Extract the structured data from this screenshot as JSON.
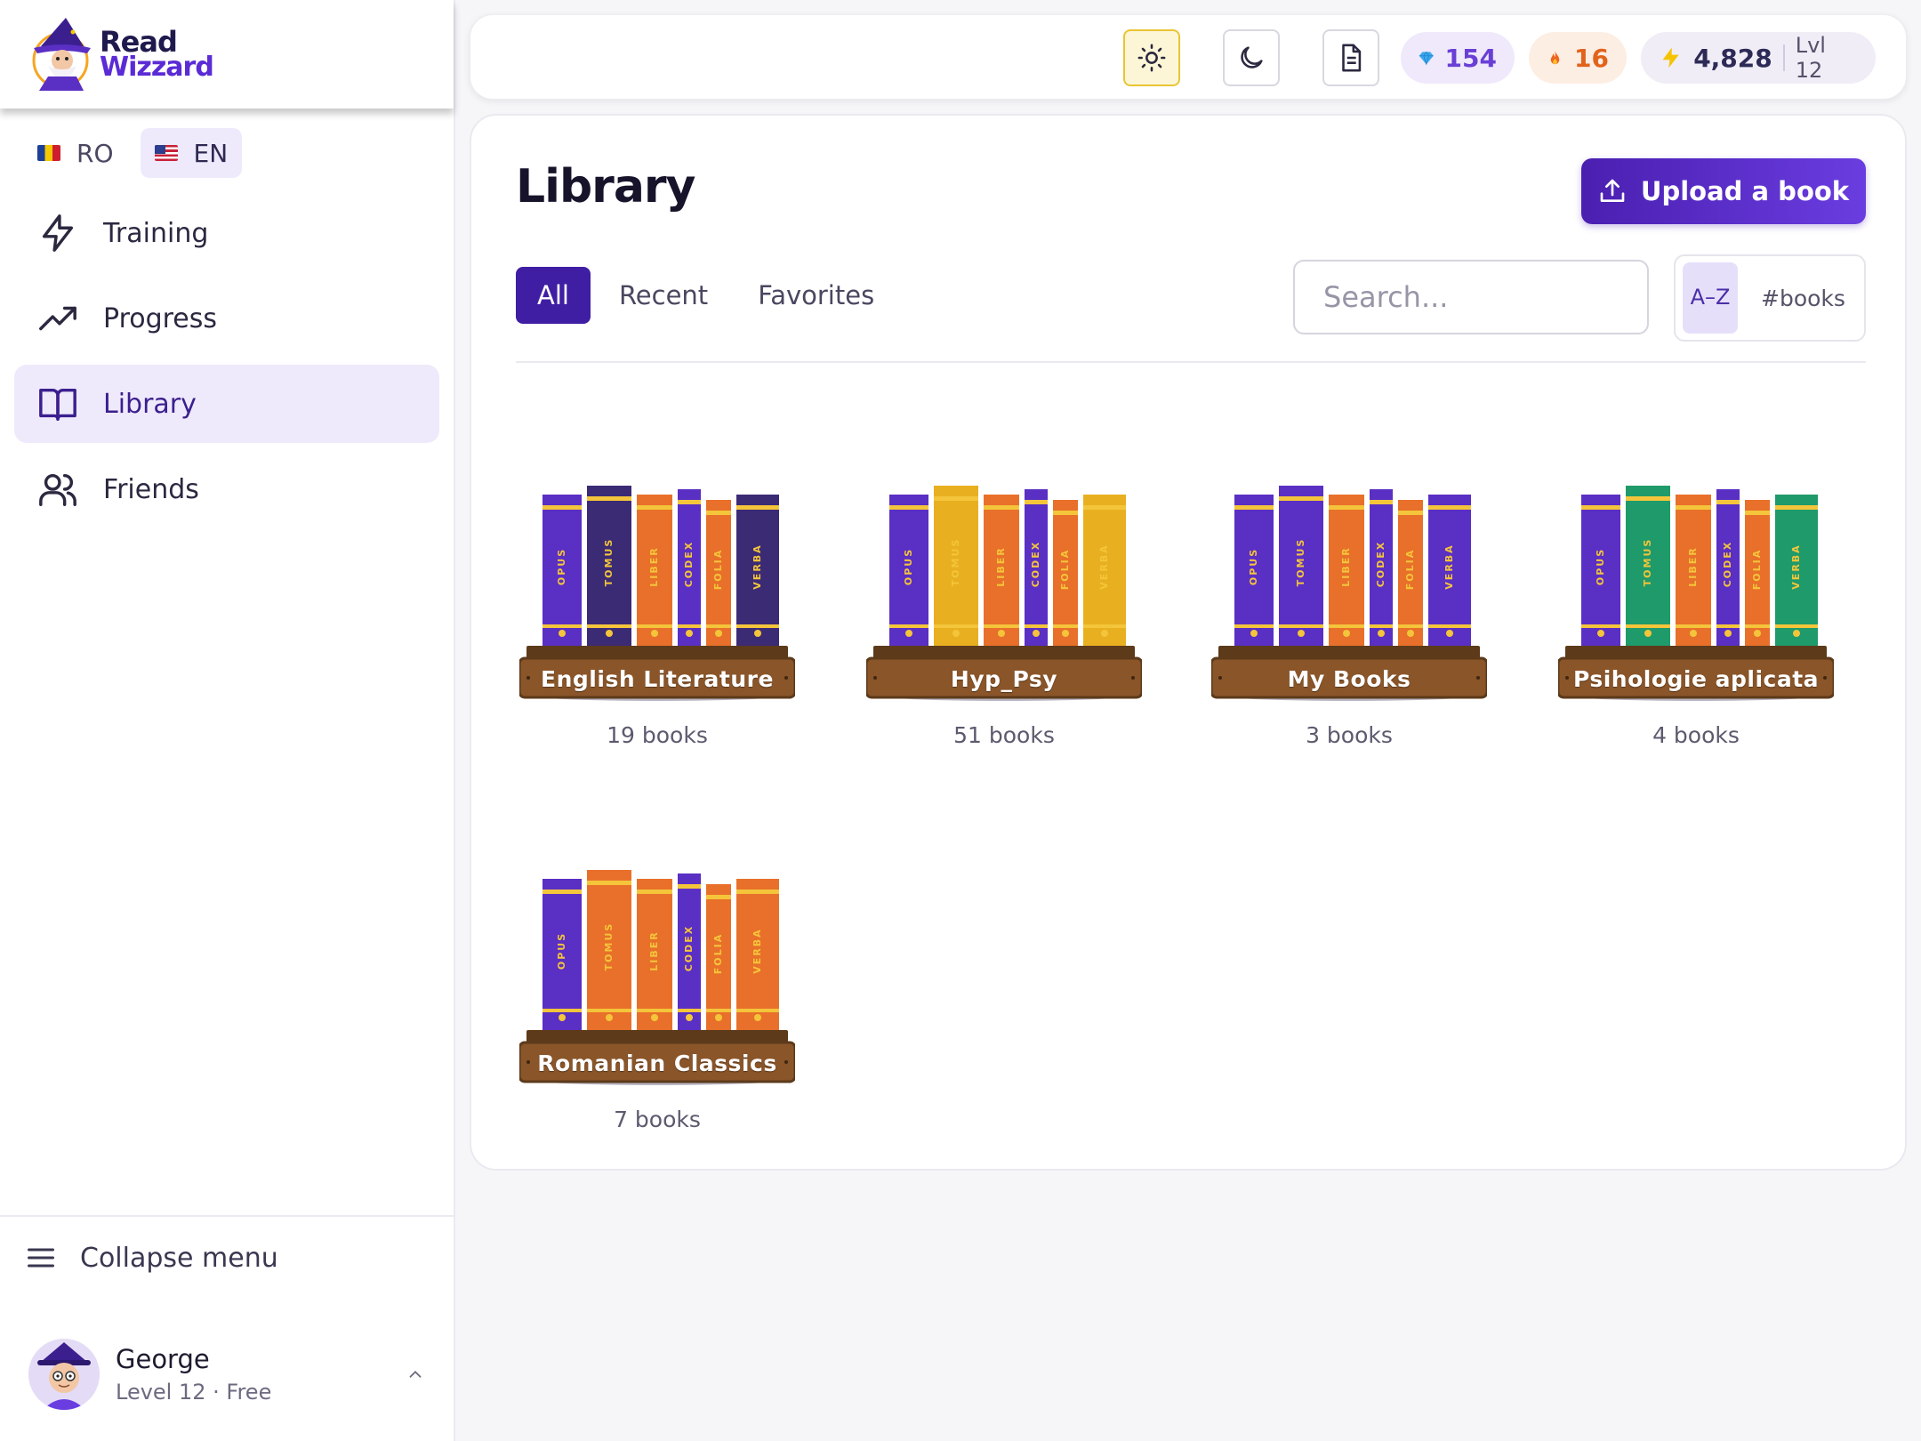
{
  "app": {
    "logo_line1": "Read",
    "logo_line2": "Wizzard"
  },
  "languages": [
    {
      "code": "RO",
      "active": false
    },
    {
      "code": "EN",
      "active": true
    }
  ],
  "nav": [
    {
      "label": "Training",
      "icon": "lightning-icon",
      "active": false
    },
    {
      "label": "Progress",
      "icon": "trending-up-icon",
      "active": false
    },
    {
      "label": "Library",
      "icon": "open-book-icon",
      "active": true
    },
    {
      "label": "Friends",
      "icon": "users-icon",
      "active": false
    }
  ],
  "sidebar_bottom": {
    "collapse_label": "Collapse menu",
    "user_name": "George",
    "user_sub": "Level 12 · Free"
  },
  "topbar": {
    "gems": "154",
    "streak": "16",
    "xp": "4,828",
    "level": "Lvl 12",
    "colors": {
      "gem": "#6a3fd6",
      "fire": "#e2631b"
    }
  },
  "library": {
    "title": "Library",
    "upload_label": "Upload a book",
    "tabs": [
      {
        "label": "All",
        "active": true
      },
      {
        "label": "Recent",
        "active": false
      },
      {
        "label": "Favorites",
        "active": false
      }
    ],
    "search_placeholder": "Search...",
    "sort_az": "A–Z",
    "sort_books": "#books",
    "shelves": [
      {
        "name": "English Literature",
        "count": "19 books",
        "spine_words": [
          "OPUS",
          "TOMUS",
          "LIBER",
          "CODEX",
          "FOLIA",
          "VERBA"
        ],
        "colors": [
          "#5a2fc4",
          "#3b2b75",
          "#e8702a",
          "#5a2fc4",
          "#e8702a",
          "#3b2b75"
        ]
      },
      {
        "name": "Hyp_Psy",
        "count": "51 books",
        "spine_words": [
          "OPUS",
          "TOMUS",
          "LIBER",
          "CODEX",
          "FOLIA",
          "VERBA"
        ],
        "colors": [
          "#5a2fc4",
          "#e8b020",
          "#e8702a",
          "#5a2fc4",
          "#e8702a",
          "#e8b020"
        ]
      },
      {
        "name": "My Books",
        "count": "3 books",
        "spine_words": [
          "OPUS",
          "TOMUS",
          "LIBER",
          "CODEX",
          "FOLIA",
          "VERBA"
        ],
        "colors": [
          "#5a2fc4",
          "#5a2fc4",
          "#e8702a",
          "#5a2fc4",
          "#e8702a",
          "#5a2fc4"
        ]
      },
      {
        "name": "Psihologie aplicata",
        "count": "4 books",
        "spine_words": [
          "OPUS",
          "TOMUS",
          "LIBER",
          "CODEX",
          "FOLIA",
          "VERBA"
        ],
        "colors": [
          "#5a2fc4",
          "#1f9a6a",
          "#e8702a",
          "#5a2fc4",
          "#e8702a",
          "#1f9a6a"
        ]
      },
      {
        "name": "Romanian Classics",
        "count": "7 books",
        "spine_words": [
          "OPUS",
          "TOMUS",
          "LIBER",
          "CODEX",
          "FOLIA",
          "VERBA"
        ],
        "colors": [
          "#5a2fc4",
          "#e8702a",
          "#e8702a",
          "#5a2fc4",
          "#e8702a",
          "#e8702a"
        ]
      }
    ]
  }
}
